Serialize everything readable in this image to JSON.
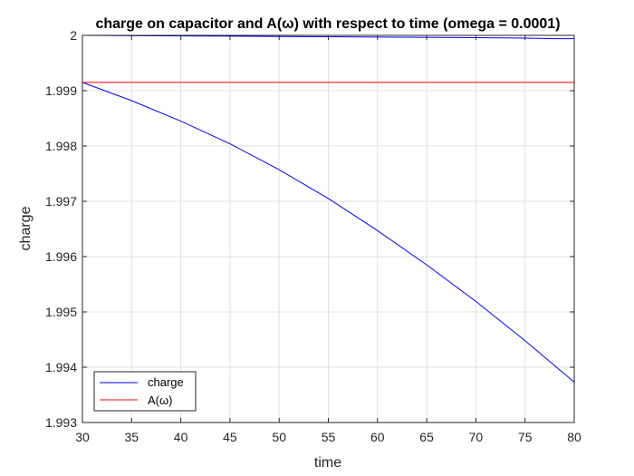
{
  "chart_data": {
    "type": "line",
    "title": "charge on capacitor and A(ω) with respect to time (omega = 0.0001)",
    "xlabel": "time",
    "ylabel": "charge",
    "xlim": [
      30,
      80
    ],
    "ylim": [
      1.993,
      2.0
    ],
    "xticks": [
      "30",
      "35",
      "40",
      "45",
      "50",
      "55",
      "60",
      "65",
      "70",
      "75",
      "80"
    ],
    "yticks": [
      "1.993",
      "1.994",
      "1.995",
      "1.996",
      "1.997",
      "1.998",
      "1.999",
      "2"
    ],
    "grid": true,
    "legend_position": "bottom-left",
    "series": [
      {
        "name": "charge",
        "color": "#0000ff",
        "x": [
          30,
          35,
          40,
          45,
          50,
          55,
          60,
          65,
          70,
          75,
          80
        ],
        "y": [
          1.99915,
          1.99882,
          1.99845,
          1.99804,
          1.99757,
          1.99705,
          1.99647,
          1.99585,
          1.99519,
          1.99448,
          1.99373
        ]
      },
      {
        "name": "charge",
        "color": "#0000ff",
        "x": [
          30,
          40,
          50,
          60,
          70,
          75,
          78,
          80
        ],
        "y": [
          2.0,
          1.99999,
          1.99998,
          1.99997,
          1.99996,
          1.99995,
          1.99994,
          1.99994
        ]
      },
      {
        "name": "A(ω)",
        "color": "#ff0000",
        "x": [
          30,
          80
        ],
        "y": [
          1.99915,
          1.99915
        ]
      },
      {
        "name": "A(ω)",
        "color": "#ff0000",
        "x": [
          30,
          80
        ],
        "y": [
          2.0,
          2.0
        ]
      }
    ],
    "legend": [
      {
        "label": "charge",
        "color": "#0000ff"
      },
      {
        "label": "A(ω)",
        "color": "#ff0000"
      }
    ]
  }
}
